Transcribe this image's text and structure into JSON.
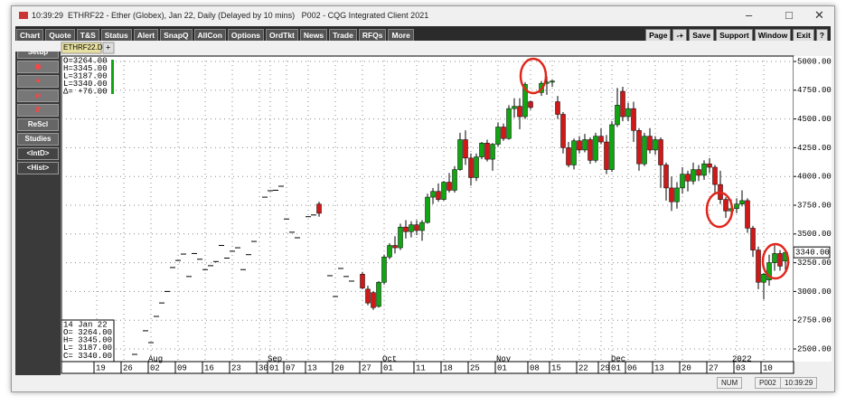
{
  "window": {
    "title": "10:39:29  ETHRF22 - Ether (Globex), Jan 22, Daily (Delayed by 10 mins)   P002 - CQG Integrated Client 2021",
    "menu": [
      "Chart",
      "Quote",
      "T&S",
      "Status",
      "Alert",
      "SnapQ",
      "AllCon",
      "Options",
      "OrdTkt",
      "News",
      "Trade",
      "RFQs",
      "More"
    ],
    "right_menu": [
      "Page",
      "-+",
      "Save",
      "Support",
      "Window",
      "Exit",
      "?"
    ],
    "side_buttons": [
      "Setup",
      "ReScl",
      "Studies",
      "<IntD>",
      "<Hist>"
    ],
    "tab": "ETHRF22.D",
    "tab_add": "+",
    "status": [
      "NUM",
      "P002",
      "10:39:29"
    ]
  },
  "chart_data": {
    "type": "candlestick",
    "quote_box": [
      "O=3264.00",
      "H=3345.00",
      "L=3187.00",
      "L=3340.00",
      "Δ= +76.00"
    ],
    "info_box": [
      "14 Jan 22",
      "O= 3264.00",
      "H= 3345.00",
      "L= 3187.00",
      "C= 3340.00"
    ],
    "last_price": {
      "value": 3340,
      "label": "3340.00"
    },
    "up_color": "#11a611",
    "down_color": "#d01818",
    "ylim": [
      2390,
      5047
    ],
    "yticks": [
      {
        "value": 5000,
        "label": "5000.00"
      },
      {
        "value": 4750,
        "label": "4750.00"
      },
      {
        "value": 4500,
        "label": "4500.00"
      },
      {
        "value": 4250,
        "label": "4250.00"
      },
      {
        "value": 4000,
        "label": "4000.00"
      },
      {
        "value": 3750,
        "label": "3750.00"
      },
      {
        "value": 3500,
        "label": "3500.00"
      },
      {
        "value": 3250,
        "label": "3250.00"
      },
      {
        "value": 3000,
        "label": "3000.00"
      },
      {
        "value": 2750,
        "label": "2750.00"
      },
      {
        "value": 2500,
        "label": "2500.00"
      }
    ],
    "months": [
      "Aug",
      "Sep",
      "Oct",
      "Nov",
      "Dec",
      "2022"
    ],
    "grid": true,
    "categories": [
      "19",
      null,
      null,
      null,
      null,
      "26",
      null,
      null,
      null,
      null,
      "02",
      null,
      null,
      null,
      null,
      "09",
      null,
      null,
      null,
      null,
      "16",
      null,
      null,
      null,
      null,
      "23",
      null,
      null,
      null,
      null,
      "30",
      null,
      "01",
      null,
      null,
      "07",
      null,
      null,
      null,
      "13",
      null,
      null,
      null,
      null,
      "20",
      null,
      null,
      null,
      null,
      "27",
      null,
      null,
      null,
      "01",
      null,
      null,
      null,
      null,
      null,
      "11",
      null,
      null,
      null,
      null,
      "18",
      null,
      null,
      null,
      null,
      "25",
      null,
      null,
      null,
      null,
      "01",
      null,
      null,
      null,
      null,
      null,
      "08",
      null,
      null,
      null,
      "15",
      null,
      null,
      null,
      null,
      "22",
      null,
      null,
      null,
      "29",
      null,
      "01",
      null,
      null,
      "06",
      null,
      null,
      null,
      null,
      "13",
      null,
      null,
      null,
      null,
      "20",
      null,
      null,
      null,
      null,
      "27",
      null,
      null,
      null,
      null,
      "03",
      null,
      null,
      null,
      null,
      "10",
      null,
      null,
      null,
      null
    ],
    "candles": [
      null,
      null,
      null,
      null,
      null,
      null,
      null,
      {
        "close": 2453
      },
      null,
      {
        "close": 2658
      },
      {
        "close": 2555
      },
      {
        "close": 2783
      },
      {
        "close": 2900
      },
      {
        "close": 3000
      },
      {
        "close": 3208
      },
      {
        "close": 3270
      },
      {
        "close": 3325
      },
      {
        "close": 3130
      },
      {
        "close": 3330
      },
      {
        "close": 3280
      },
      {
        "close": 3190
      },
      {
        "close": 3224
      },
      {
        "close": 3260
      },
      {
        "close": 3400
      },
      {
        "close": 3290
      },
      {
        "close": 3350
      },
      {
        "close": 3380
      },
      {
        "close": 3190
      },
      {
        "close": 3320
      },
      {
        "close": 3435
      },
      null,
      {
        "close": 3820
      },
      {
        "close": 3876
      },
      {
        "close": 3880
      },
      {
        "close": 3915
      },
      {
        "close": 3630
      },
      {
        "close": 3515
      },
      {
        "close": 3467
      },
      null,
      {
        "close": 3650
      },
      {
        "close": 3665
      },
      {
        "open": 3760,
        "high": 3780,
        "low": 3650,
        "close": 3680
      },
      null,
      {
        "close": 3137
      },
      {
        "close": 2956
      },
      {
        "close": 3200
      },
      {
        "close": 3130
      },
      {
        "close": 3090
      },
      null,
      {
        "open": 3150,
        "high": 3170,
        "low": 3020,
        "close": 3030
      },
      {
        "open": 3020,
        "high": 3050,
        "low": 2880,
        "close": 2900
      },
      {
        "open": 2990,
        "high": 3000,
        "low": 2840,
        "close": 2860
      },
      {
        "open": 2870,
        "high": 3090,
        "low": 2860,
        "close": 3080
      },
      {
        "open": 3080,
        "high": 3320,
        "low": 3060,
        "close": 3300
      },
      {
        "open": 3300,
        "high": 3420,
        "low": 3280,
        "close": 3400
      },
      {
        "open": 3400,
        "high": 3480,
        "low": 3330,
        "close": 3380
      },
      {
        "open": 3380,
        "high": 3590,
        "low": 3360,
        "close": 3560
      },
      {
        "open": 3560,
        "high": 3620,
        "low": 3460,
        "close": 3520
      },
      {
        "open": 3520,
        "high": 3610,
        "low": 3470,
        "close": 3580
      },
      {
        "open": 3580,
        "high": 3620,
        "low": 3490,
        "close": 3530
      },
      {
        "open": 3530,
        "high": 3620,
        "low": 3440,
        "close": 3600
      },
      {
        "open": 3600,
        "high": 3850,
        "low": 3590,
        "close": 3820
      },
      {
        "open": 3820,
        "high": 3900,
        "low": 3760,
        "close": 3870
      },
      {
        "open": 3870,
        "high": 3940,
        "low": 3780,
        "close": 3800
      },
      {
        "open": 3800,
        "high": 3960,
        "low": 3790,
        "close": 3950
      },
      {
        "open": 3950,
        "high": 4030,
        "low": 3860,
        "close": 3880
      },
      {
        "open": 3880,
        "high": 4090,
        "low": 3860,
        "close": 4060
      },
      {
        "open": 4060,
        "high": 4380,
        "low": 4050,
        "close": 4320
      },
      {
        "open": 4320,
        "high": 4400,
        "low": 4100,
        "close": 4160
      },
      {
        "open": 4160,
        "high": 4200,
        "low": 3920,
        "close": 3990
      },
      {
        "open": 3990,
        "high": 4200,
        "low": 3960,
        "close": 4170
      },
      {
        "open": 4170,
        "high": 4300,
        "low": 4150,
        "close": 4290
      },
      {
        "open": 4290,
        "high": 4320,
        "low": 4130,
        "close": 4150
      },
      {
        "open": 4150,
        "high": 4290,
        "low": 4050,
        "close": 4280
      },
      {
        "open": 4280,
        "high": 4470,
        "low": 4260,
        "close": 4430
      },
      {
        "open": 4430,
        "high": 4460,
        "low": 4310,
        "close": 4330
      },
      {
        "open": 4330,
        "high": 4620,
        "low": 4320,
        "close": 4590
      },
      {
        "open": 4590,
        "high": 4680,
        "low": 4510,
        "close": 4610
      },
      {
        "open": 4610,
        "high": 4680,
        "low": 4410,
        "close": 4520
      },
      {
        "open": 4520,
        "high": 4820,
        "low": 4500,
        "close": 4800
      },
      {
        "open": 4650,
        "high": 4660,
        "low": 4580,
        "close": 4600
      },
      null,
      {
        "open": 4730,
        "high": 4830,
        "low": 4700,
        "close": 4810
      },
      {
        "open": 4810,
        "high": 4870,
        "low": 4710,
        "close": 4820
      },
      {
        "open": 4820,
        "high": 4840,
        "low": 4780,
        "close": 4830
      },
      {
        "open": 4650,
        "high": 4700,
        "low": 4500,
        "close": 4540
      },
      {
        "open": 4540,
        "high": 4560,
        "low": 4200,
        "close": 4250
      },
      {
        "open": 4250,
        "high": 4300,
        "low": 4080,
        "close": 4100
      },
      {
        "open": 4100,
        "high": 4330,
        "low": 4060,
        "close": 4310
      },
      {
        "open": 4310,
        "high": 4350,
        "low": 4200,
        "close": 4230
      },
      {
        "open": 4230,
        "high": 4370,
        "low": 4210,
        "close": 4320
      },
      {
        "open": 4320,
        "high": 4340,
        "low": 4110,
        "close": 4140
      },
      {
        "open": 4140,
        "high": 4380,
        "low": 4120,
        "close": 4350
      },
      {
        "open": 4350,
        "high": 4420,
        "low": 4280,
        "close": 4300
      },
      {
        "open": 4300,
        "high": 4360,
        "low": 4020,
        "close": 4060
      },
      {
        "open": 4060,
        "high": 4480,
        "low": 4040,
        "close": 4450
      },
      {
        "open": 4450,
        "high": 4770,
        "low": 4430,
        "close": 4620
      },
      {
        "open": 4740,
        "high": 4780,
        "low": 4480,
        "close": 4520
      },
      {
        "open": 4520,
        "high": 4640,
        "low": 4480,
        "close": 4590
      },
      {
        "open": 4590,
        "high": 4650,
        "low": 4300,
        "close": 4400
      },
      {
        "open": 4400,
        "high": 4420,
        "low": 4050,
        "close": 4110
      },
      {
        "open": 4110,
        "high": 4380,
        "low": 4090,
        "close": 4350
      },
      {
        "open": 4350,
        "high": 4420,
        "low": 4200,
        "close": 4230
      },
      {
        "open": 4230,
        "high": 4350,
        "low": 4190,
        "close": 4320
      },
      {
        "open": 4320,
        "high": 4340,
        "low": 3900,
        "close": 4100
      },
      {
        "open": 4100,
        "high": 4120,
        "low": 3790,
        "close": 3900
      },
      {
        "open": 3900,
        "high": 4000,
        "low": 3700,
        "close": 3780
      },
      {
        "open": 3780,
        "high": 3950,
        "low": 3720,
        "close": 3900
      },
      {
        "open": 3900,
        "high": 4080,
        "low": 3850,
        "close": 4020
      },
      {
        "open": 4020,
        "high": 4050,
        "low": 3870,
        "close": 3960
      },
      {
        "open": 3960,
        "high": 4120,
        "low": 3930,
        "close": 4060
      },
      {
        "open": 4060,
        "high": 4100,
        "low": 3960,
        "close": 4010
      },
      {
        "open": 4010,
        "high": 4140,
        "low": 3970,
        "close": 4110
      },
      {
        "open": 4110,
        "high": 4160,
        "low": 4030,
        "close": 4080
      },
      {
        "open": 4080,
        "high": 4100,
        "low": 3850,
        "close": 3930
      },
      {
        "open": 3930,
        "high": 4050,
        "low": 3760,
        "close": 3800
      },
      {
        "open": 3800,
        "high": 3820,
        "low": 3640,
        "close": 3700
      },
      {
        "open": 3700,
        "high": 3800,
        "low": 3630,
        "close": 3720
      },
      {
        "open": 3720,
        "high": 3810,
        "low": 3680,
        "close": 3760
      },
      {
        "open": 3760,
        "high": 3880,
        "low": 3740,
        "close": 3790
      },
      {
        "open": 3790,
        "high": 3810,
        "low": 3510,
        "close": 3550
      },
      {
        "open": 3550,
        "high": 3570,
        "low": 3300,
        "close": 3360
      },
      {
        "open": 3360,
        "high": 3390,
        "low": 3020,
        "close": 3080
      },
      {
        "open": 3080,
        "high": 3160,
        "low": 2930,
        "close": 3150
      },
      {
        "open": 3100,
        "high": 3320,
        "low": 3050,
        "close": 3250
      },
      {
        "open": 3250,
        "high": 3400,
        "low": 3180,
        "close": 3330
      },
      {
        "open": 3330,
        "high": 3360,
        "low": 3180,
        "close": 3220
      },
      {
        "open": 3264,
        "high": 3345,
        "low": 3187,
        "close": 3340
      }
    ]
  }
}
